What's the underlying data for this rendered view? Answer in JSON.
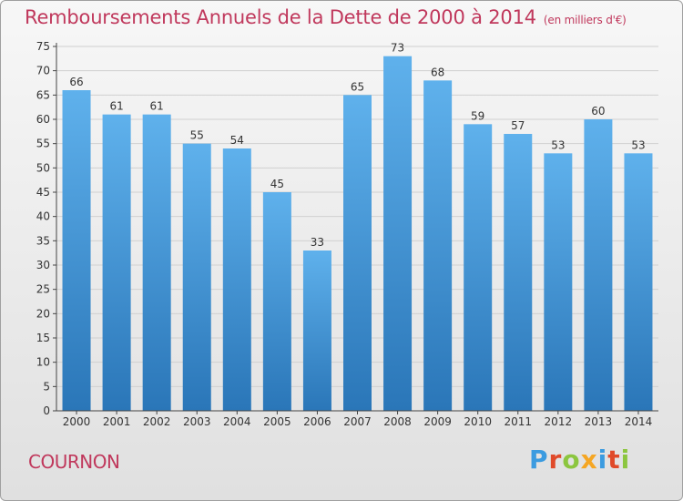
{
  "header": {
    "title": "Remboursements Annuels de la Dette de 2000 à 2014",
    "subtitle": "(en milliers d'€)"
  },
  "footer": {
    "town": "COURNON",
    "logo": "Proxiti",
    "logo_letters": [
      "P",
      "r",
      "o",
      "x",
      "i",
      "t",
      "i"
    ],
    "logo_colors": [
      "#3b9be0",
      "#e04a2a",
      "#8cc63f",
      "#f5a623",
      "#3b9be0",
      "#e04a2a",
      "#8cc63f"
    ]
  },
  "colors": {
    "bar_light": "#5fb1ec",
    "bar_dark": "#2a76b8",
    "accent": "#c0385c",
    "grid": "#d0d0d0",
    "axis": "#444444"
  },
  "chart_data": {
    "type": "bar",
    "title": "Remboursements Annuels de la Dette de 2000 à 2014",
    "subtitle": "(en milliers d'€)",
    "xlabel": "",
    "ylabel": "",
    "categories": [
      "2000",
      "2001",
      "2002",
      "2003",
      "2004",
      "2005",
      "2006",
      "2007",
      "2008",
      "2009",
      "2010",
      "2011",
      "2012",
      "2013",
      "2014"
    ],
    "values": [
      66,
      61,
      61,
      55,
      54,
      45,
      33,
      65,
      73,
      68,
      59,
      57,
      53,
      60,
      53
    ],
    "value_labels": [
      "66",
      "61",
      "61",
      "55",
      "54",
      "45",
      "33",
      "65",
      "73",
      "68",
      "59",
      "57",
      "53",
      "60",
      "53"
    ],
    "ylim": [
      0,
      75
    ],
    "yticks": [
      "0",
      "5",
      "10",
      "15",
      "20",
      "25",
      "30",
      "35",
      "40",
      "45",
      "50",
      "55",
      "60",
      "65",
      "70",
      "75"
    ],
    "grid": true,
    "legend": "none"
  }
}
